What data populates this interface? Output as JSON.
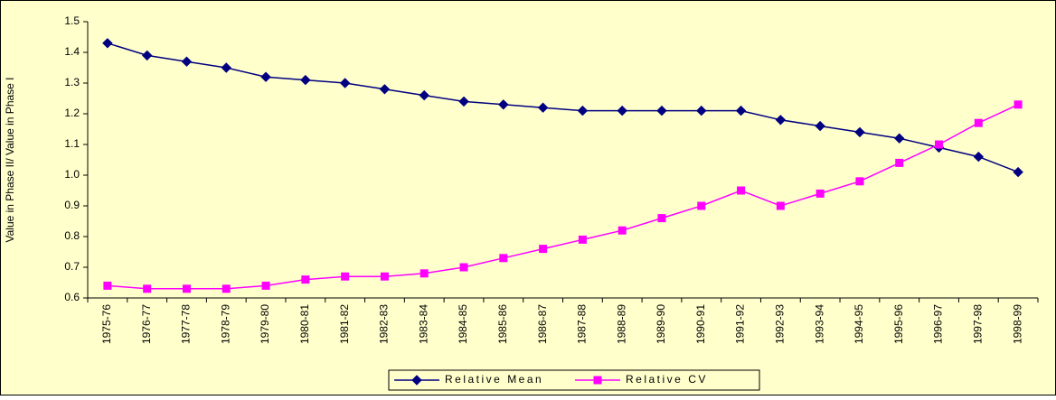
{
  "chart_data": {
    "type": "line",
    "y_label": "Value in Phase II/ Value in Phase I",
    "categories": [
      "1975-76",
      "1976-77",
      "1977-78",
      "1978-79",
      "1979-80",
      "1980-81",
      "1981-82",
      "1982-83",
      "1983-84",
      "1984-85",
      "1985-86",
      "1986-87",
      "1987-88",
      "1988-89",
      "1989-90",
      "1990-91",
      "1991-92",
      "1992-93",
      "1993-94",
      "1994-95",
      "1995-96",
      "1996-97",
      "1997-98",
      "1998-99"
    ],
    "series": [
      {
        "name": "Relative Mean",
        "color": "#000080",
        "marker": "diamond",
        "values": [
          1.43,
          1.39,
          1.37,
          1.35,
          1.32,
          1.31,
          1.3,
          1.28,
          1.26,
          1.24,
          1.23,
          1.22,
          1.21,
          1.21,
          1.21,
          1.21,
          1.21,
          1.18,
          1.16,
          1.14,
          1.12,
          1.09,
          1.06,
          1.01
        ]
      },
      {
        "name": "Relative CV",
        "color": "#FF00FF",
        "marker": "square",
        "values": [
          0.64,
          0.63,
          0.63,
          0.63,
          0.64,
          0.66,
          0.67,
          0.67,
          0.68,
          0.7,
          0.73,
          0.76,
          0.79,
          0.82,
          0.86,
          0.9,
          0.95,
          0.9,
          0.94,
          0.98,
          1.04,
          1.1,
          1.17,
          1.23
        ]
      }
    ],
    "ylim": [
      0.6,
      1.5
    ],
    "yticks": [
      0.6,
      0.7,
      0.8,
      0.9,
      {
        "value": 1,
        "label": "1.0"
      },
      1.1,
      1.2,
      1.3,
      1.4,
      1.5
    ],
    "grid": false,
    "legend": "bottom"
  }
}
